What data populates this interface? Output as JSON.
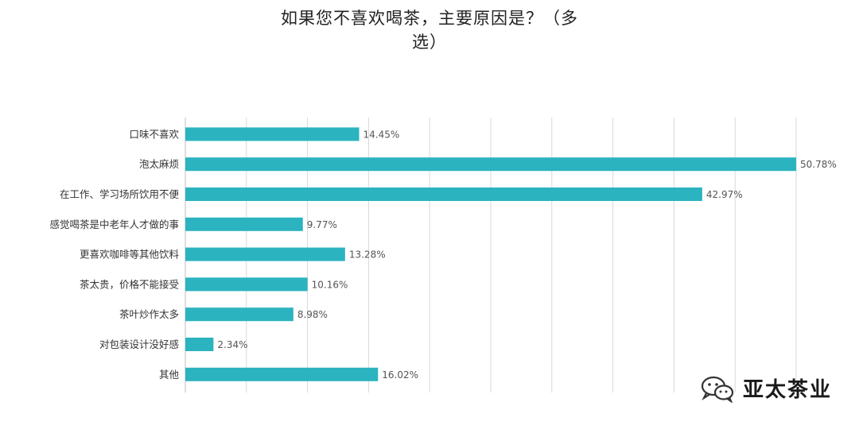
{
  "chart_data": {
    "type": "bar",
    "orientation": "horizontal",
    "title": "如果您不喜欢喝茶，主要原因是？（多选）",
    "categories": [
      "口味不喜欢",
      "泡太麻烦",
      "在工作、学习场所饮用不便",
      "感觉喝茶是中老年人才做的事",
      "更喜欢咖啡等其他饮料",
      "茶太贵，价格不能接受",
      "茶叶炒作太多",
      "对包装设计没好感",
      "其他"
    ],
    "values": [
      14.45,
      50.78,
      42.97,
      9.77,
      13.28,
      10.16,
      8.98,
      2.34,
      16.02
    ],
    "value_labels": [
      "14.45%",
      "50.78%",
      "42.97%",
      "9.77%",
      "13.28%",
      "10.16%",
      "8.98%",
      "2.34%",
      "16.02%"
    ],
    "xlim": [
      0,
      55
    ],
    "grid": true,
    "bar_color": "#2bb3c0"
  },
  "title_lines": [
    "如果您不喜欢喝茶，主要原因是？（多",
    "选）"
  ],
  "watermark": {
    "text": "亚太茶业",
    "icon": "wechat-icon"
  }
}
